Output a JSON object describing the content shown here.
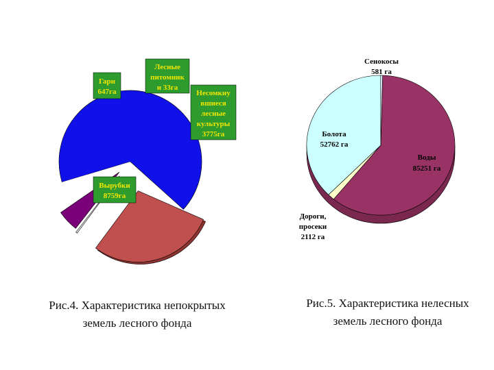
{
  "colors": {
    "green_label": "#2E9B2E",
    "green_text": "#F2E600",
    "c1_felling": "#1010E8",
    "c1_fires": "#7A007A",
    "c1_nursery": "#F2F2F2",
    "c1_unclosed": "#C0504D",
    "c1_gap": "#FFFFFF",
    "c2_waters": "#993366",
    "c2_bogs": "#CCFFFF",
    "c2_roads": "#FFFFCC",
    "c2_hay": "#E6F2FF"
  },
  "chart_data": [
    {
      "type": "pie",
      "title": "",
      "exploded": true,
      "style": "slices colored; labels on green boxes with yellow text",
      "slices": [
        {
          "label_lines": [
            "Вырубки",
            "8759га"
          ],
          "value": 8759,
          "color": "#1010E8"
        },
        {
          "label_lines": [
            "Гари",
            "647га"
          ],
          "value": 647,
          "color": "#7A007A"
        },
        {
          "label_lines": [
            "Лесные",
            "питомник",
            "и 33га"
          ],
          "value": 33,
          "color": "#F2F2F2"
        },
        {
          "label_lines": [
            "Несомкну",
            "вшиеся",
            "лесные",
            "культуры",
            "3775га"
          ],
          "value": 3775,
          "color": "#C0504D"
        }
      ]
    },
    {
      "type": "pie",
      "title": "",
      "style": "3d",
      "slices": [
        {
          "label_lines": [
            "Воды",
            "85251 га"
          ],
          "value": 85251,
          "color": "#993366"
        },
        {
          "label_lines": [
            "Дороги,",
            "просеки",
            "2112 га"
          ],
          "value": 2112,
          "color": "#FFFFCC"
        },
        {
          "label_lines": [
            "Болота",
            "52762 га"
          ],
          "value": 52762,
          "color": "#CCFFFF"
        },
        {
          "label_lines": [
            "Сенокосы",
            "581 га"
          ],
          "value": 581,
          "color": "#E6F2FF"
        }
      ]
    }
  ],
  "captions": {
    "left": "Рис.4. Характеристика непокрытых земель лесного фонда",
    "right": "Рис.5. Характеристика нелесных земель лесного фонда"
  }
}
